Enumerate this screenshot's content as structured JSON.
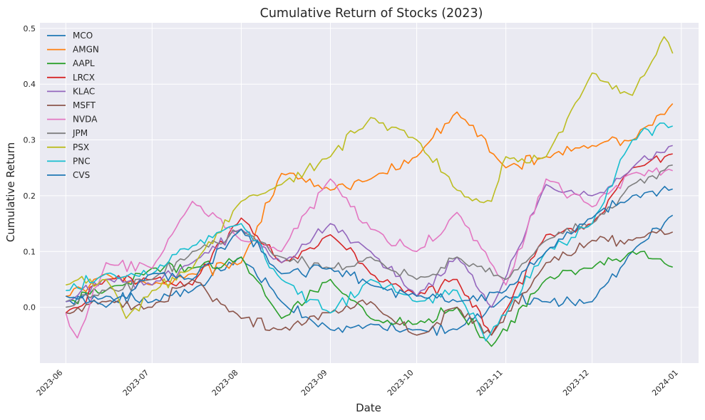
{
  "chart_data": {
    "type": "line",
    "title": "Cumulative Return of Stocks (2023)",
    "xlabel": "Date",
    "ylabel": "Cumulative Return",
    "xlim": [
      "2023-05-23",
      "2024-01-07"
    ],
    "ylim": [
      -0.1,
      0.51
    ],
    "grid": true,
    "legend_position": "top-left",
    "x_ticks": [
      "2023-06",
      "2023-07",
      "2023-08",
      "2023-09",
      "2023-10",
      "2023-11",
      "2023-12",
      "2024-01"
    ],
    "y_ticks": [
      0.0,
      0.1,
      0.2,
      0.3,
      0.4,
      0.5
    ],
    "y_tick_labels": [
      "0.0",
      "0.1",
      "0.2",
      "0.3",
      "0.4",
      "0.5"
    ],
    "series": [
      {
        "name": "MCO",
        "color": "#1f77b4",
        "points": [
          [
            "2023-06-01",
            0.01
          ],
          [
            "2023-06-15",
            0.02
          ],
          [
            "2023-07-01",
            0.01
          ],
          [
            "2023-07-15",
            0.03
          ],
          [
            "2023-08-01",
            0.09
          ],
          [
            "2023-08-15",
            0.01
          ],
          [
            "2023-09-01",
            -0.04
          ],
          [
            "2023-09-15",
            -0.03
          ],
          [
            "2023-10-01",
            -0.04
          ],
          [
            "2023-10-15",
            -0.04
          ],
          [
            "2023-11-01",
            0.02
          ],
          [
            "2023-11-15",
            0.01
          ],
          [
            "2023-12-01",
            0.01
          ],
          [
            "2023-12-15",
            0.1
          ],
          [
            "2023-12-29",
            0.165
          ]
        ]
      },
      {
        "name": "AMGN",
        "color": "#ff7f0e",
        "points": [
          [
            "2023-06-01",
            0.02
          ],
          [
            "2023-06-15",
            0.06
          ],
          [
            "2023-07-01",
            0.04
          ],
          [
            "2023-07-15",
            0.06
          ],
          [
            "2023-08-01",
            0.08
          ],
          [
            "2023-08-15",
            0.24
          ],
          [
            "2023-09-01",
            0.21
          ],
          [
            "2023-09-15",
            0.23
          ],
          [
            "2023-10-01",
            0.27
          ],
          [
            "2023-10-15",
            0.35
          ],
          [
            "2023-11-01",
            0.25
          ],
          [
            "2023-11-15",
            0.27
          ],
          [
            "2023-12-01",
            0.29
          ],
          [
            "2023-12-15",
            0.3
          ],
          [
            "2023-12-29",
            0.365
          ]
        ]
      },
      {
        "name": "AAPL",
        "color": "#2ca02c",
        "points": [
          [
            "2023-06-01",
            0.01
          ],
          [
            "2023-06-15",
            0.03
          ],
          [
            "2023-07-01",
            0.07
          ],
          [
            "2023-07-15",
            0.07
          ],
          [
            "2023-08-01",
            0.09
          ],
          [
            "2023-08-15",
            -0.02
          ],
          [
            "2023-09-01",
            0.05
          ],
          [
            "2023-09-15",
            -0.02
          ],
          [
            "2023-10-01",
            -0.03
          ],
          [
            "2023-10-15",
            0.0
          ],
          [
            "2023-10-27",
            -0.07
          ],
          [
            "2023-11-15",
            0.05
          ],
          [
            "2023-12-01",
            0.07
          ],
          [
            "2023-12-15",
            0.1
          ],
          [
            "2023-12-29",
            0.072
          ]
        ]
      },
      {
        "name": "LRCX",
        "color": "#d62728",
        "points": [
          [
            "2023-06-01",
            -0.01
          ],
          [
            "2023-06-15",
            0.05
          ],
          [
            "2023-07-01",
            0.05
          ],
          [
            "2023-07-15",
            0.04
          ],
          [
            "2023-08-01",
            0.16
          ],
          [
            "2023-08-15",
            0.08
          ],
          [
            "2023-09-01",
            0.13
          ],
          [
            "2023-09-15",
            0.06
          ],
          [
            "2023-10-01",
            0.02
          ],
          [
            "2023-10-15",
            0.05
          ],
          [
            "2023-10-27",
            -0.05
          ],
          [
            "2023-11-15",
            0.13
          ],
          [
            "2023-12-01",
            0.15
          ],
          [
            "2023-12-15",
            0.25
          ],
          [
            "2023-12-29",
            0.275
          ]
        ]
      },
      {
        "name": "KLAC",
        "color": "#9467bd",
        "points": [
          [
            "2023-06-01",
            0.01
          ],
          [
            "2023-06-15",
            0.05
          ],
          [
            "2023-07-01",
            0.04
          ],
          [
            "2023-07-15",
            0.08
          ],
          [
            "2023-08-01",
            0.14
          ],
          [
            "2023-08-15",
            0.08
          ],
          [
            "2023-09-01",
            0.15
          ],
          [
            "2023-09-15",
            0.1
          ],
          [
            "2023-10-01",
            0.02
          ],
          [
            "2023-10-15",
            0.09
          ],
          [
            "2023-10-27",
            0.0
          ],
          [
            "2023-11-15",
            0.22
          ],
          [
            "2023-12-01",
            0.2
          ],
          [
            "2023-12-15",
            0.25
          ],
          [
            "2023-12-29",
            0.29
          ]
        ]
      },
      {
        "name": "MSFT",
        "color": "#8c564b",
        "points": [
          [
            "2023-06-01",
            -0.01
          ],
          [
            "2023-06-15",
            0.01
          ],
          [
            "2023-07-01",
            0.0
          ],
          [
            "2023-07-15",
            0.05
          ],
          [
            "2023-08-01",
            -0.02
          ],
          [
            "2023-08-15",
            -0.04
          ],
          [
            "2023-09-01",
            -0.01
          ],
          [
            "2023-09-15",
            0.01
          ],
          [
            "2023-10-01",
            -0.05
          ],
          [
            "2023-10-15",
            0.0
          ],
          [
            "2023-10-27",
            -0.05
          ],
          [
            "2023-11-15",
            0.08
          ],
          [
            "2023-12-01",
            0.12
          ],
          [
            "2023-12-15",
            0.12
          ],
          [
            "2023-12-29",
            0.135
          ]
        ]
      },
      {
        "name": "NVDA",
        "color": "#e377c2",
        "points": [
          [
            "2023-06-01",
            -0.01
          ],
          [
            "2023-06-05",
            -0.055
          ],
          [
            "2023-06-15",
            0.08
          ],
          [
            "2023-07-01",
            0.07
          ],
          [
            "2023-07-15",
            0.19
          ],
          [
            "2023-08-01",
            0.12
          ],
          [
            "2023-08-15",
            0.1
          ],
          [
            "2023-09-01",
            0.23
          ],
          [
            "2023-09-15",
            0.14
          ],
          [
            "2023-10-01",
            0.1
          ],
          [
            "2023-10-15",
            0.17
          ],
          [
            "2023-11-01",
            0.04
          ],
          [
            "2023-11-15",
            0.23
          ],
          [
            "2023-12-01",
            0.18
          ],
          [
            "2023-12-15",
            0.24
          ],
          [
            "2023-12-29",
            0.245
          ]
        ]
      },
      {
        "name": "JPM",
        "color": "#7f7f7f",
        "points": [
          [
            "2023-06-01",
            0.0
          ],
          [
            "2023-06-15",
            0.03
          ],
          [
            "2023-07-01",
            0.05
          ],
          [
            "2023-07-15",
            0.1
          ],
          [
            "2023-08-01",
            0.14
          ],
          [
            "2023-08-15",
            0.09
          ],
          [
            "2023-09-01",
            0.07
          ],
          [
            "2023-09-15",
            0.09
          ],
          [
            "2023-10-01",
            0.05
          ],
          [
            "2023-10-15",
            0.09
          ],
          [
            "2023-11-01",
            0.05
          ],
          [
            "2023-11-15",
            0.12
          ],
          [
            "2023-12-01",
            0.15
          ],
          [
            "2023-12-15",
            0.22
          ],
          [
            "2023-12-29",
            0.255
          ]
        ]
      },
      {
        "name": "PSX",
        "color": "#bcbd22",
        "points": [
          [
            "2023-06-01",
            0.04
          ],
          [
            "2023-06-15",
            0.05
          ],
          [
            "2023-06-22",
            -0.02
          ],
          [
            "2023-07-01",
            0.03
          ],
          [
            "2023-07-15",
            0.07
          ],
          [
            "2023-08-01",
            0.19
          ],
          [
            "2023-08-15",
            0.22
          ],
          [
            "2023-09-01",
            0.27
          ],
          [
            "2023-09-15",
            0.34
          ],
          [
            "2023-10-01",
            0.3
          ],
          [
            "2023-10-15",
            0.21
          ],
          [
            "2023-10-27",
            0.19
          ],
          [
            "2023-11-01",
            0.27
          ],
          [
            "2023-11-15",
            0.27
          ],
          [
            "2023-12-01",
            0.42
          ],
          [
            "2023-12-15",
            0.38
          ],
          [
            "2023-12-26",
            0.485
          ],
          [
            "2023-12-29",
            0.455
          ]
        ]
      },
      {
        "name": "PNC",
        "color": "#17becf",
        "points": [
          [
            "2023-06-01",
            0.03
          ],
          [
            "2023-06-15",
            0.06
          ],
          [
            "2023-07-01",
            0.06
          ],
          [
            "2023-07-15",
            0.11
          ],
          [
            "2023-08-01",
            0.15
          ],
          [
            "2023-08-15",
            0.05
          ],
          [
            "2023-09-01",
            -0.01
          ],
          [
            "2023-09-15",
            0.05
          ],
          [
            "2023-10-01",
            0.01
          ],
          [
            "2023-10-15",
            0.03
          ],
          [
            "2023-10-25",
            -0.06
          ],
          [
            "2023-11-15",
            0.1
          ],
          [
            "2023-12-01",
            0.15
          ],
          [
            "2023-12-15",
            0.3
          ],
          [
            "2023-12-26",
            0.33
          ],
          [
            "2023-12-29",
            0.325
          ]
        ]
      },
      {
        "name": "CVS",
        "color": "#1f77b4",
        "points": [
          [
            "2023-06-01",
            0.02
          ],
          [
            "2023-06-15",
            0.0
          ],
          [
            "2023-07-01",
            0.06
          ],
          [
            "2023-07-15",
            0.05
          ],
          [
            "2023-08-01",
            0.14
          ],
          [
            "2023-08-15",
            0.06
          ],
          [
            "2023-09-01",
            0.07
          ],
          [
            "2023-09-15",
            0.04
          ],
          [
            "2023-10-01",
            0.02
          ],
          [
            "2023-10-15",
            0.01
          ],
          [
            "2023-11-01",
            0.03
          ],
          [
            "2023-11-15",
            0.1
          ],
          [
            "2023-12-01",
            0.16
          ],
          [
            "2023-12-15",
            0.2
          ],
          [
            "2023-12-29",
            0.212
          ]
        ]
      }
    ]
  }
}
